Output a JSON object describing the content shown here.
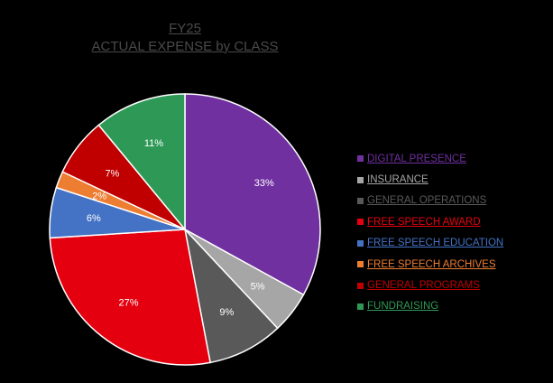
{
  "chart_data": {
    "type": "pie",
    "title": [
      "FY25",
      "ACTUAL EXPENSE by CLASS"
    ],
    "start_angle_deg": 0,
    "direction": "clockwise",
    "slices": [
      {
        "name": "DIGITAL PRESENCE",
        "value": 33,
        "label": "33%",
        "color": "#7030A0"
      },
      {
        "name": "INSURANCE",
        "value": 5,
        "label": "5%",
        "color": "#A6A6A6"
      },
      {
        "name": "GENERAL OPERATIONS",
        "value": 9,
        "label": "9%",
        "color": "#595959"
      },
      {
        "name": "FREE SPEECH AWARD",
        "value": 27,
        "label": "27%",
        "color": "#E5000F"
      },
      {
        "name": "FREE SPEECH EDUCATION",
        "value": 6,
        "label": "6%",
        "color": "#4472C4"
      },
      {
        "name": "FREE SPEECH ARCHIVES",
        "value": 2,
        "label": "2%",
        "color": "#ED7D31"
      },
      {
        "name": "GENERAL PROGRAMS",
        "value": 7,
        "label": "7%",
        "color": "#C00000"
      },
      {
        "name": "FUNDRAISING",
        "value": 11,
        "label": "11%",
        "color": "#2E9956"
      }
    ],
    "legend_position": "right"
  }
}
